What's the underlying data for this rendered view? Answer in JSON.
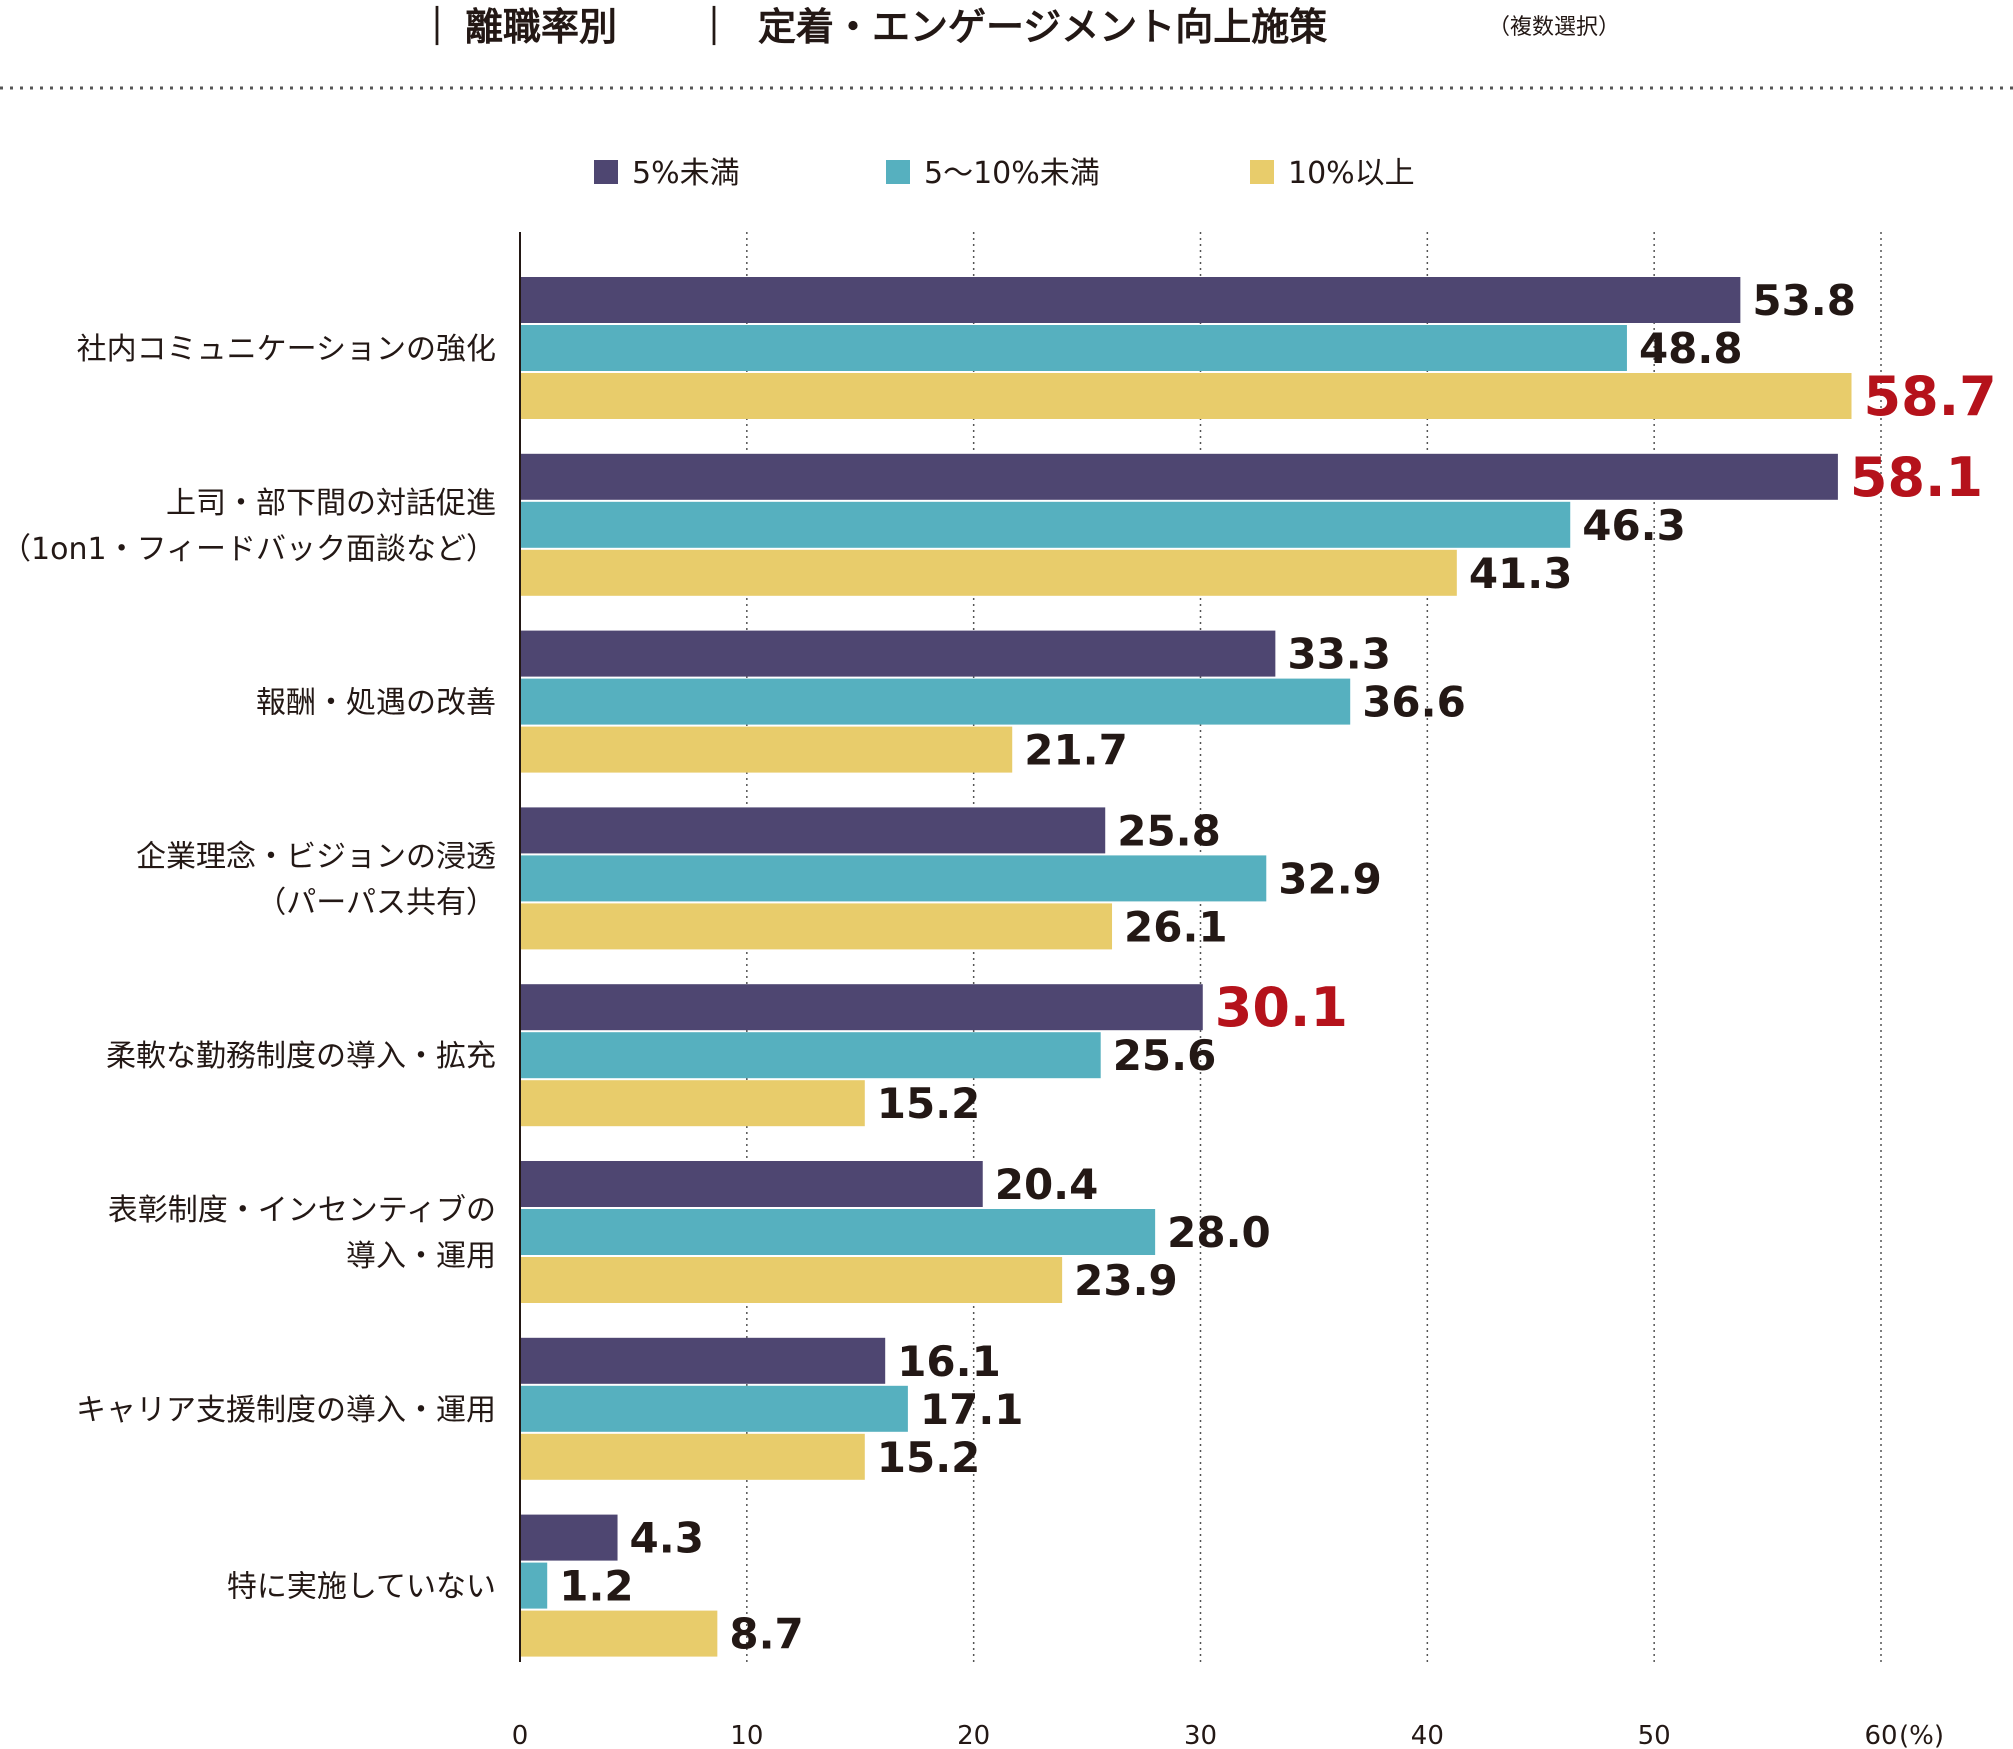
{
  "header": {
    "sep1": "｜",
    "segment": "離職率別",
    "sep2": "｜",
    "title": "定着・エンゲージメント向上施策",
    "note": "（複数選択）"
  },
  "chart_data": {
    "type": "bar",
    "orientation": "horizontal",
    "title": "定着・エンゲージメント向上施策",
    "subtitle": "（複数選択）",
    "xlabel": "",
    "ylabel": "",
    "xlim": [
      0,
      60
    ],
    "x_ticks": [
      0,
      10,
      20,
      30,
      40,
      50,
      60
    ],
    "x_tick_labels": [
      "0",
      "10",
      "20",
      "30",
      "40",
      "50",
      "60"
    ],
    "unit_label": "(%)",
    "grid": "vertical-dotted",
    "legend_position": "top",
    "categories": [
      [
        "社内コミュニケーションの強化"
      ],
      [
        "上司・部下間の対話促進",
        "（1on1・フィードバック面談など）"
      ],
      [
        "報酬・処遇の改善"
      ],
      [
        "企業理念・ビジョンの浸透",
        "（パーパス共有）"
      ],
      [
        "柔軟な勤務制度の導入・拡充"
      ],
      [
        "表彰制度・インセンティブの",
        "導入・運用"
      ],
      [
        "キャリア支援制度の導入・運用"
      ],
      [
        "特に実施していない"
      ]
    ],
    "series": [
      {
        "name": "5%未満",
        "color": "#4e4671",
        "values": [
          53.8,
          58.1,
          33.3,
          25.8,
          30.1,
          20.4,
          16.1,
          4.3
        ],
        "labels": [
          "53.8",
          "58.1",
          "33.3",
          "25.8",
          "30.1",
          "20.4",
          "16.1",
          "4.3"
        ]
      },
      {
        "name": "5〜10%未満",
        "color": "#56b0bf",
        "values": [
          48.8,
          46.3,
          36.6,
          32.9,
          25.6,
          28.0,
          17.1,
          1.2
        ],
        "labels": [
          "48.8",
          "46.3",
          "36.6",
          "32.9",
          "25.6",
          "28.0",
          "17.1",
          "1.2"
        ]
      },
      {
        "name": "10%以上",
        "color": "#e8cc6b",
        "values": [
          58.7,
          41.3,
          21.7,
          26.1,
          15.2,
          23.9,
          15.2,
          8.7
        ],
        "labels": [
          "58.7",
          "41.3",
          "21.7",
          "26.1",
          "15.2",
          "23.9",
          "15.2",
          "8.7"
        ]
      }
    ],
    "highlighted": [
      {
        "series": 0,
        "index": 1
      },
      {
        "series": 0,
        "index": 4
      },
      {
        "series": 2,
        "index": 0
      }
    ],
    "colors": {
      "label": "#231815",
      "highlight": "#b5121b",
      "grid": "#555555",
      "axis": "#231815",
      "divider": "#555555"
    }
  }
}
